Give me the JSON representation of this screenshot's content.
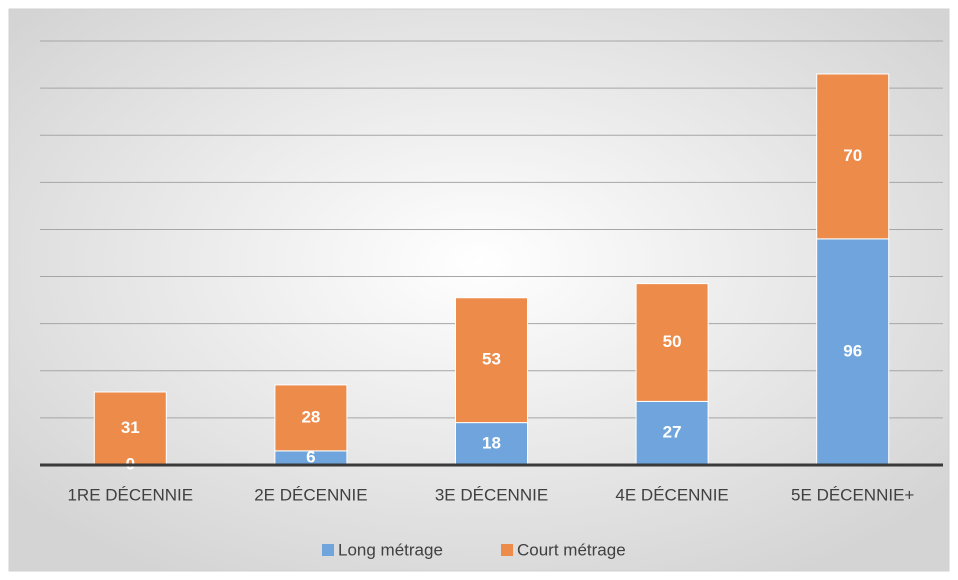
{
  "chart_data": {
    "type": "stacked_bar",
    "categories": [
      "1RE DÉCENNIE",
      "2E DÉCENNIE",
      "3E DÉCENNIE",
      "4E DÉCENNIE",
      "5E DÉCENNIE+"
    ],
    "series": [
      {
        "name": "Long métrage",
        "color": "#6fa5dc",
        "values": [
          0,
          6,
          18,
          27,
          96
        ]
      },
      {
        "name": "Court métrage",
        "color": "#ed8b4b",
        "values": [
          31,
          28,
          53,
          50,
          70
        ]
      }
    ],
    "ylim": [
      0,
      180
    ],
    "yticks": [
      0,
      20,
      40,
      60,
      80,
      100,
      120,
      140,
      160,
      180
    ],
    "grid": true,
    "legend": "bottom"
  }
}
